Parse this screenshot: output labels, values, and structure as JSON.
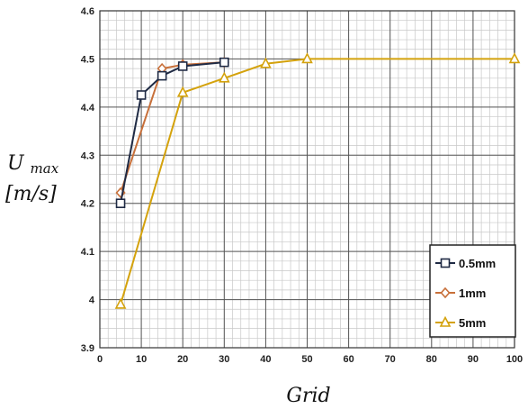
{
  "chart_data": {
    "type": "line",
    "title": "",
    "xlabel": "Grid",
    "ylabel_line1": "U",
    "ylabel_sub": "max",
    "ylabel_line2": "[m/s]",
    "xlim": [
      0,
      100
    ],
    "ylim": [
      3.9,
      4.6
    ],
    "xticks": [
      0,
      10,
      20,
      30,
      40,
      50,
      60,
      70,
      80,
      90,
      100
    ],
    "yticks": [
      3.9,
      4,
      4.1,
      4.2,
      4.3,
      4.4,
      4.5,
      4.6
    ],
    "ytick_labels": [
      "3.9",
      "4",
      "4.1",
      "4.2",
      "4.3",
      "4.4",
      "4.5",
      "4.6"
    ],
    "grid": true,
    "legend_position": "bottom-right",
    "series": [
      {
        "name": "0.5mm",
        "marker": "square",
        "color": "#1f2a44",
        "x": [
          5,
          10,
          15,
          20,
          30
        ],
        "y": [
          4.2,
          4.425,
          4.465,
          4.485,
          4.493
        ]
      },
      {
        "name": "1mm",
        "marker": "diamond",
        "color": "#c8703a",
        "x": [
          5,
          15,
          20,
          30
        ],
        "y": [
          4.222,
          4.48,
          4.488,
          4.493
        ]
      },
      {
        "name": "5mm",
        "marker": "triangle",
        "color": "#d4a20c",
        "x": [
          5,
          20,
          30,
          40,
          50,
          100
        ],
        "y": [
          3.99,
          4.43,
          4.46,
          4.49,
          4.5,
          4.5
        ]
      }
    ]
  }
}
